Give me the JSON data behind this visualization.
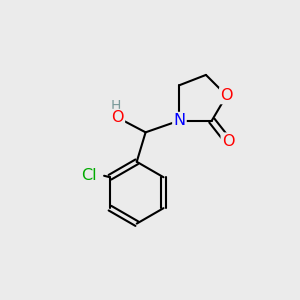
{
  "bg_color": "#ebebeb",
  "bond_color": "#000000",
  "bond_width": 1.5,
  "atom_colors": {
    "O": "#ff0000",
    "N": "#0000ff",
    "Cl": "#00aa00",
    "C": "#000000",
    "H": "#7a9a9a"
  },
  "font_size": 11.5,
  "fig_size": [
    3.0,
    3.0
  ],
  "dpi": 100
}
